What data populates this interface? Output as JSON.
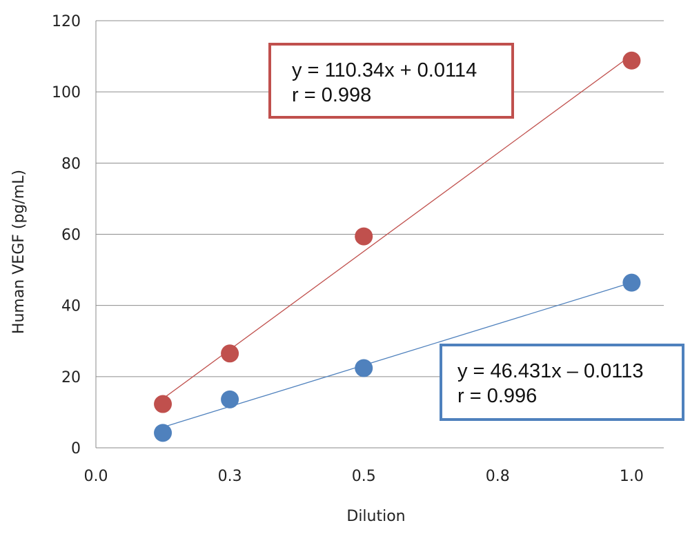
{
  "chart_data": {
    "type": "scatter",
    "xlabel": "Dilution",
    "ylabel": "Human VEGF (pg/mL)",
    "xlim": [
      0,
      1.06
    ],
    "ylim": [
      0,
      120
    ],
    "x_ticks": [
      0.0,
      0.25,
      0.5,
      0.75,
      1.0
    ],
    "x_tick_labels": [
      "0.0",
      "0.3",
      "0.5",
      "0.8",
      "1.0"
    ],
    "y_ticks": [
      0,
      20,
      40,
      60,
      80,
      100,
      120
    ],
    "y_tick_labels": [
      "0",
      "20",
      "40",
      "60",
      "80",
      "100",
      "120"
    ],
    "grid": "horizontal",
    "legend": "none",
    "series": [
      {
        "color": "#c0504d",
        "points": [
          {
            "x": 0.125,
            "y": 12.3
          },
          {
            "x": 0.25,
            "y": 26.5
          },
          {
            "x": 0.5,
            "y": 59.4
          },
          {
            "x": 1.0,
            "y": 108.8
          }
        ],
        "trendline": {
          "slope": 110.34,
          "intercept": 0.0114
        },
        "equation_box": {
          "equation": "y = 110.34x + 0.0114",
          "r": "r = 0.998"
        }
      },
      {
        "color": "#4f81bd",
        "points": [
          {
            "x": 0.125,
            "y": 4.2
          },
          {
            "x": 0.25,
            "y": 13.6
          },
          {
            "x": 0.5,
            "y": 22.4
          },
          {
            "x": 1.0,
            "y": 46.4
          }
        ],
        "trendline": {
          "slope": 46.431,
          "intercept": -0.0113
        },
        "equation_box": {
          "equation": "y = 46.431x – 0.0113",
          "r": "r = 0.996"
        }
      }
    ]
  }
}
